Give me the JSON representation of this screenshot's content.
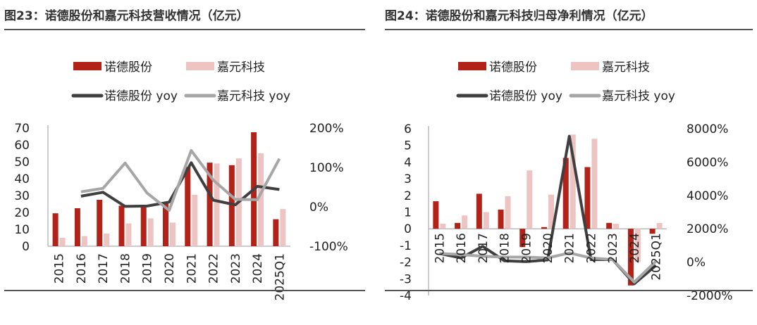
{
  "charts": [
    {
      "title": "图23：诺德股份和嘉元科技营收情况（亿元）",
      "colors": {
        "bar1": "#B22218",
        "bar2": "#EEC4C2",
        "line1": "#3F3F3F",
        "line2": "#A6A6A6"
      },
      "legend": {
        "bar1": "诺德股份",
        "bar2": "嘉元科技",
        "line1": "诺德股份 yoy",
        "line2": "嘉元科技 yoy"
      },
      "chart_data": {
        "type": "bar",
        "categories": [
          "2015",
          "2016",
          "2017",
          "2018",
          "2019",
          "2020",
          "2021",
          "2022",
          "2023",
          "2024",
          "2025Q1"
        ],
        "series": [
          {
            "name": "诺德股份",
            "type": "bar",
            "axis": "left",
            "values": [
              19.5,
              22.5,
              27.5,
              24,
              23,
              26,
              47,
              49.5,
              48,
              67.5,
              16
            ]
          },
          {
            "name": "嘉元科技",
            "type": "bar",
            "axis": "left",
            "values": [
              5,
              6,
              7.5,
              13.5,
              16.5,
              14,
              30.5,
              49,
              52,
              55,
              22
            ]
          },
          {
            "name": "诺德股份 yoy",
            "type": "line",
            "axis": "right",
            "values": [
              null,
              0.27,
              0.37,
              0.01,
              0.02,
              0.12,
              1.12,
              0.17,
              0.05,
              0.52,
              0.44
            ]
          },
          {
            "name": "嘉元科技 yoy",
            "type": "line",
            "axis": "right",
            "values": [
              null,
              0.38,
              0.47,
              1.11,
              0.35,
              -0.09,
              1.43,
              0.68,
              0.19,
              0.18,
              1.22
            ]
          }
        ],
        "left_axis": {
          "min": 0,
          "max": 70,
          "ticks": [
            "0",
            "10",
            "20",
            "30",
            "40",
            "50",
            "60",
            "70"
          ]
        },
        "right_axis": {
          "min": -1.0,
          "max": 2.0,
          "ticks": [
            "-100%",
            "0%",
            "100%",
            "200%"
          ]
        },
        "legend_position": "top"
      }
    },
    {
      "title": "图24：诺德股份和嘉元科技归母净利情况（亿元）",
      "colors": {
        "bar1": "#B22218",
        "bar2": "#EEC4C2",
        "line1": "#3F3F3F",
        "line2": "#A6A6A6"
      },
      "legend": {
        "bar1": "诺德股份",
        "bar2": "嘉元科技",
        "line1": "诺德股份 yoy",
        "line2": "嘉元科技 yoy"
      },
      "chart_data": {
        "type": "bar",
        "categories": [
          "2015",
          "2016",
          "2017",
          "2018",
          "2019",
          "2020",
          "2021",
          "2022",
          "2023",
          "2024",
          "2025Q1"
        ],
        "series": [
          {
            "name": "诺德股份",
            "type": "bar",
            "axis": "left",
            "values": [
              1.65,
              0.35,
              2.1,
              1.15,
              -1.1,
              0.1,
              4.25,
              3.7,
              0.35,
              -3.4,
              -0.3
            ]
          },
          {
            "name": "嘉元科技",
            "type": "bar",
            "axis": "left",
            "values": [
              0.3,
              0.8,
              1.0,
              1.95,
              3.5,
              2.05,
              5.65,
              5.4,
              0.3,
              -2.0,
              0.35
            ]
          },
          {
            "name": "诺德股份 yoy",
            "type": "line",
            "axis": "right",
            "values": [
              5.2,
              2.5,
              9.5,
              0.8,
              0.3,
              1.3,
              75.5,
              1.5,
              1.5,
              -13.0,
              -2.0
            ]
          },
          {
            "name": "嘉元科技 yoy",
            "type": "line",
            "axis": "right",
            "values": [
              5.2,
              4.5,
              3.5,
              3.0,
              3.0,
              2.5,
              5.5,
              2.5,
              1.5,
              -12.0,
              0.5
            ]
          }
        ],
        "left_axis": {
          "min": -4,
          "max": 6,
          "ticks": [
            "-4",
            "-3",
            "-2",
            "-1",
            "0",
            "1",
            "2",
            "3",
            "4",
            "5",
            "6"
          ]
        },
        "right_axis": {
          "min": -20,
          "max": 80,
          "ticks": [
            "-2000%",
            "0%",
            "2000%",
            "4000%",
            "6000%",
            "8000%"
          ]
        },
        "legend_position": "top"
      }
    }
  ]
}
